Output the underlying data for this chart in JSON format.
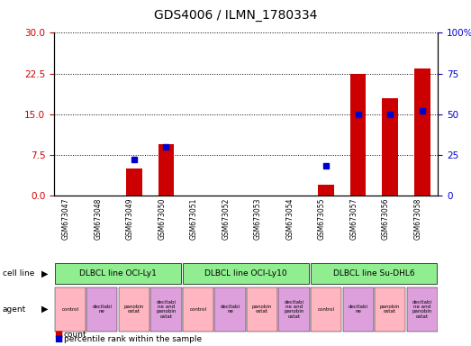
{
  "title": "GDS4006 / ILMN_1780334",
  "samples": [
    "GSM673047",
    "GSM673048",
    "GSM673049",
    "GSM673050",
    "GSM673051",
    "GSM673052",
    "GSM673053",
    "GSM673054",
    "GSM673055",
    "GSM673057",
    "GSM673056",
    "GSM673058"
  ],
  "counts": [
    0,
    0,
    5.0,
    9.5,
    0,
    0,
    0,
    0,
    2.0,
    22.5,
    18.0,
    23.5
  ],
  "percentile_ranks": [
    null,
    null,
    22,
    30,
    null,
    null,
    null,
    null,
    18,
    50,
    50,
    52
  ],
  "ylim_left": [
    0,
    30
  ],
  "ylim_right": [
    0,
    100
  ],
  "yticks_left": [
    0,
    7.5,
    15,
    22.5,
    30
  ],
  "yticks_right": [
    0,
    25,
    50,
    75,
    100
  ],
  "cell_lines": [
    {
      "label": "DLBCL line OCI-Ly1",
      "start": 0,
      "end": 3,
      "color": "#90ee90"
    },
    {
      "label": "DLBCL line OCI-Ly10",
      "start": 4,
      "end": 7,
      "color": "#90ee90"
    },
    {
      "label": "DLBCL line Su-DHL6",
      "start": 8,
      "end": 11,
      "color": "#90ee90"
    }
  ],
  "agents": [
    {
      "label": "control",
      "color": "#ffb6c1"
    },
    {
      "label": "decitabi\nne",
      "color": "#dda0dd"
    },
    {
      "label": "panobin\nostat",
      "color": "#ffb6c1"
    },
    {
      "label": "decitabi\nne and\npanobin\nostat",
      "color": "#dda0dd"
    },
    {
      "label": "control",
      "color": "#ffb6c1"
    },
    {
      "label": "decitabi\nne",
      "color": "#dda0dd"
    },
    {
      "label": "panobin\nostat",
      "color": "#ffb6c1"
    },
    {
      "label": "decitabi\nne and\npanobin\nostat",
      "color": "#dda0dd"
    },
    {
      "label": "control",
      "color": "#ffb6c1"
    },
    {
      "label": "decitabi\nne",
      "color": "#dda0dd"
    },
    {
      "label": "panobin\nostat",
      "color": "#ffb6c1"
    },
    {
      "label": "decitabi\nne and\npanobin\nostat",
      "color": "#dda0dd"
    }
  ],
  "bar_color": "#cc0000",
  "point_color": "#0000cc",
  "sample_bg_color": "#d3d3d3",
  "cell_line_color": "#90ee90",
  "agent_colors": [
    "#ffb6c1",
    "#dda0dd",
    "#ffb6c1",
    "#dda0dd"
  ],
  "left_axis_color": "#cc0000",
  "right_axis_color": "#0000cc"
}
